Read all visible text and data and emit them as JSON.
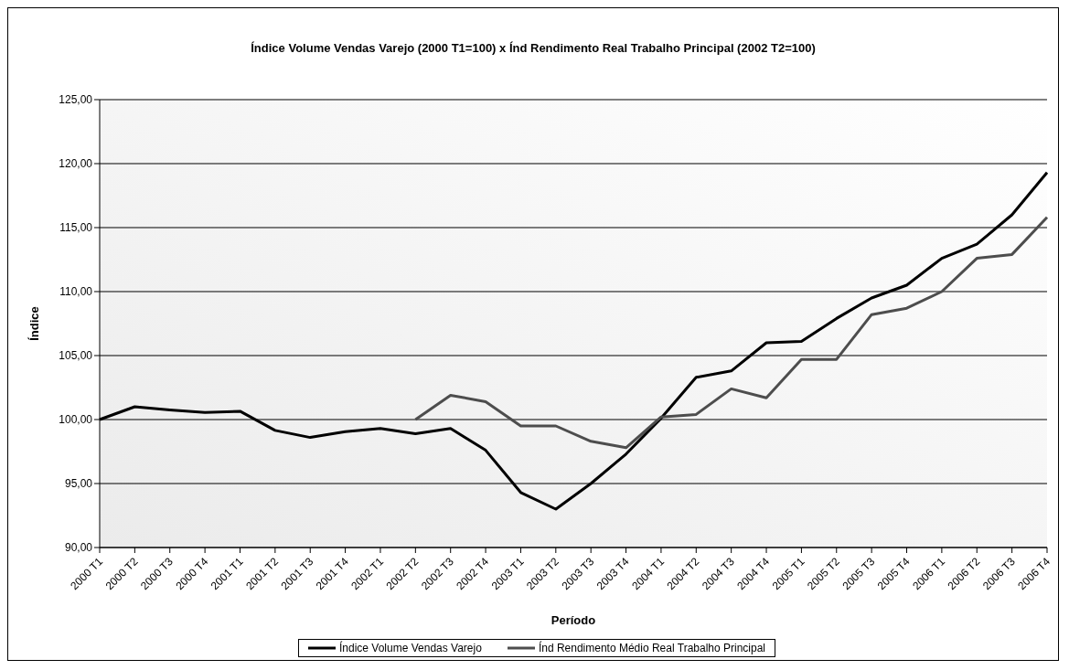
{
  "chart_data": {
    "type": "line",
    "title": "Índice Volume Vendas Varejo (2000 T1=100) x Índ Rendimento Real Trabalho Principal (2002 T2=100)",
    "xlabel": "Período",
    "ylabel": "Índice",
    "categories": [
      "2000 T1",
      "2000 T2",
      "2000 T3",
      "2000 T4",
      "2001 T1",
      "2001 T2",
      "2001 T3",
      "2001 T4",
      "2002 T1",
      "2002 T2",
      "2002 T3",
      "2002 T4",
      "2003 T1",
      "2003 T2",
      "2003 T3",
      "2003 T4",
      "2004 T1",
      "2004 T2",
      "2004 T3",
      "2004 T4",
      "2005 T1",
      "2005 T2",
      "2005 T3",
      "2005 T4",
      "2006 T1",
      "2006 T2",
      "2006 T3",
      "2006 T4"
    ],
    "series": [
      {
        "name": "Índice Volume Vendas Varejo",
        "color": "#000000",
        "values": [
          100,
          101.0,
          100.75,
          100.55,
          100.65,
          99.15,
          98.6,
          99.05,
          99.3,
          98.9,
          99.3,
          97.6,
          94.3,
          93.0,
          95.0,
          97.3,
          100.1,
          103.3,
          103.8,
          106.0,
          106.1,
          107.9,
          109.5,
          110.5,
          112.6,
          113.7,
          116.0,
          119.3
        ]
      },
      {
        "name": "Índ Rendimento Médio Real Trabalho Principal",
        "color": "#4d4d4d",
        "values": [
          null,
          null,
          null,
          null,
          null,
          null,
          null,
          null,
          null,
          100.0,
          101.9,
          101.4,
          99.5,
          99.5,
          98.3,
          97.8,
          100.2,
          100.4,
          102.4,
          101.7,
          104.7,
          104.7,
          108.2,
          108.7,
          110.0,
          112.6,
          112.9,
          115.8
        ]
      }
    ],
    "ylim": [
      90,
      125
    ],
    "yticks": [
      {
        "value": 90,
        "label": "90,00"
      },
      {
        "value": 95,
        "label": "95,00"
      },
      {
        "value": 100,
        "label": "100,00"
      },
      {
        "value": 105,
        "label": "105,00"
      },
      {
        "value": 110,
        "label": "110,00"
      },
      {
        "value": 115,
        "label": "115,00"
      },
      {
        "value": 120,
        "label": "120,00"
      },
      {
        "value": 125,
        "label": "125,00"
      }
    ],
    "grid": "y",
    "legend": "bottom",
    "marker": "none",
    "line_style": "solid"
  }
}
